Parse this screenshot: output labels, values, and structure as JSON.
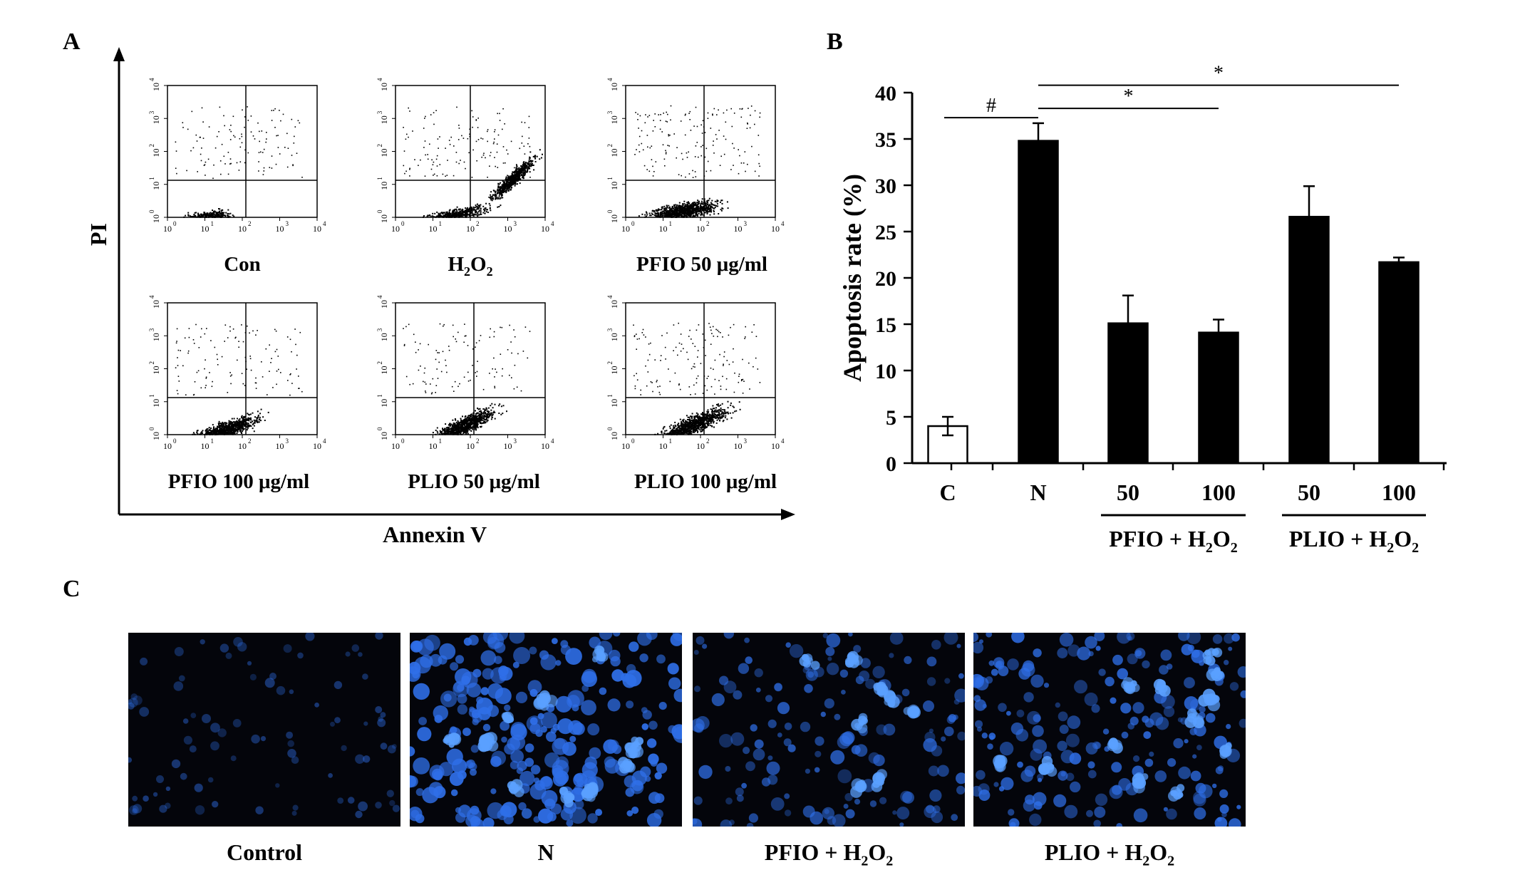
{
  "panels": {
    "a": {
      "letter": "A"
    },
    "b": {
      "letter": "B"
    },
    "c": {
      "letter": "C"
    }
  },
  "flow": {
    "y_axis_title": "PI",
    "x_axis_title": "Annexin V",
    "tick_exponents": [
      "0",
      "1",
      "2",
      "3",
      "4"
    ],
    "plots": [
      {
        "label": "Con",
        "pattern": "con"
      },
      {
        "label": "H2O2",
        "label_parts": [
          "H",
          "2",
          "O",
          "2"
        ],
        "pattern": "h2o2"
      },
      {
        "label": "PFIO 50 μg/ml",
        "pattern": "pfio50"
      },
      {
        "label": "PFIO 100 μg/ml",
        "pattern": "pfio100"
      },
      {
        "label": "PLIO 50 μg/ml",
        "pattern": "plio50"
      },
      {
        "label": "PLIO 100 μg/ml",
        "pattern": "plio100"
      }
    ]
  },
  "chart_data": {
    "type": "bar",
    "ylabel": "Apoptosis rate (%)",
    "ylim": [
      0,
      40
    ],
    "yticks": [
      0,
      5,
      10,
      15,
      20,
      25,
      30,
      35,
      40
    ],
    "categories": [
      "C",
      "N",
      "50",
      "100",
      "50",
      "100"
    ],
    "values": [
      4.0,
      34.8,
      15.1,
      14.1,
      26.6,
      21.7
    ],
    "errors": [
      1.0,
      1.9,
      3.0,
      1.4,
      3.3,
      0.5
    ],
    "bar_colors": [
      "#ffffff",
      "#000000",
      "#000000",
      "#000000",
      "#000000",
      "#000000"
    ],
    "groups": [
      {
        "label": "PFIO + H2O2",
        "parts": [
          "PFIO + H",
          "2",
          "O",
          "2"
        ],
        "from": 2,
        "to": 3
      },
      {
        "label": "PLIO + H2O2",
        "parts": [
          "PLIO + H",
          "2",
          "O",
          "2"
        ],
        "from": 4,
        "to": 5
      }
    ],
    "significance": [
      {
        "from": 0,
        "to": 1,
        "symbol": "#"
      },
      {
        "from": 1,
        "to": 3,
        "symbol": "*"
      },
      {
        "from": 1,
        "to": 5,
        "symbol": "*"
      }
    ]
  },
  "micrographs": [
    {
      "label": "Control",
      "density": "sparse",
      "brightness": "dim"
    },
    {
      "label": "N",
      "density": "dense",
      "brightness": "bright"
    },
    {
      "label": "PFIO + H2O2",
      "label_parts": [
        "PFIO + H",
        "2",
        "O",
        "2"
      ],
      "density": "medium",
      "brightness": "medium"
    },
    {
      "label": "PLIO + H2O2",
      "label_parts": [
        "PLIO + H",
        "2",
        "O",
        "2"
      ],
      "density": "medium-dense",
      "brightness": "medium"
    }
  ]
}
